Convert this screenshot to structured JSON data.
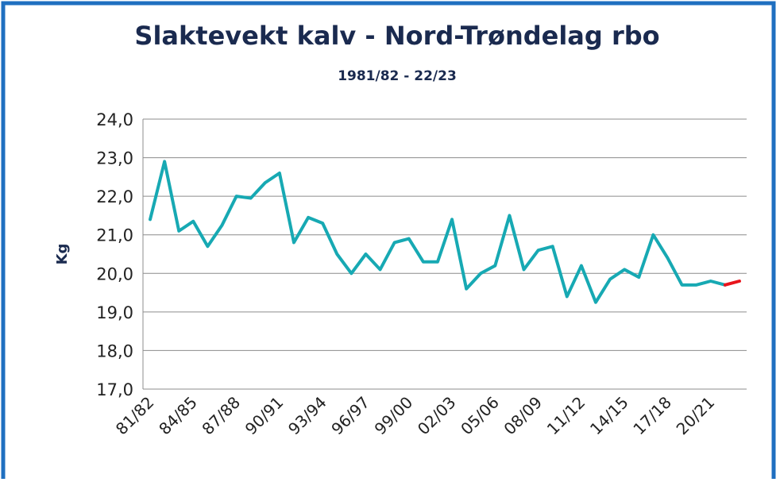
{
  "chart_data": {
    "type": "line",
    "title": "Slaktevekt kalv - Nord-Trøndelag rbo",
    "subtitle": "1981/82 - 22/23",
    "y_label": "Kg",
    "categories": [
      "81/82",
      null,
      null,
      "84/85",
      null,
      null,
      "87/88",
      null,
      null,
      "90/91",
      null,
      null,
      "93/94",
      null,
      null,
      "96/97",
      null,
      null,
      "99/00",
      null,
      null,
      "02/03",
      null,
      null,
      "05/06",
      null,
      null,
      "08/09",
      null,
      null,
      "11/12",
      null,
      null,
      "14/15",
      null,
      null,
      "17/18",
      null,
      null,
      "20/21",
      null,
      null
    ],
    "values": [
      21.4,
      22.9,
      21.1,
      21.35,
      20.7,
      21.25,
      22.0,
      21.95,
      22.35,
      22.6,
      20.8,
      21.45,
      21.3,
      20.5,
      20.0,
      20.5,
      20.1,
      20.8,
      20.9,
      20.3,
      20.3,
      21.4,
      19.6,
      20.0,
      20.2,
      21.5,
      20.1,
      20.6,
      20.7,
      19.4,
      20.2,
      19.25,
      19.85,
      20.1,
      19.9,
      21.0,
      20.4,
      19.7,
      19.7,
      19.8,
      19.7,
      19.8
    ],
    "color": "#17a9b3",
    "last_segment_color": "#e8141c",
    "ylim": [
      17,
      24
    ],
    "yticks": [
      {
        "value": 17,
        "label": "17,0"
      },
      {
        "value": 18,
        "label": "18,0"
      },
      {
        "value": 19,
        "label": "19,0"
      },
      {
        "value": 20,
        "label": "20,0"
      },
      {
        "value": 21,
        "label": "21,0"
      },
      {
        "value": 22,
        "label": "22,0"
      },
      {
        "value": 23,
        "label": "23,0"
      },
      {
        "value": 24,
        "label": "24,0"
      }
    ],
    "grid": true
  }
}
